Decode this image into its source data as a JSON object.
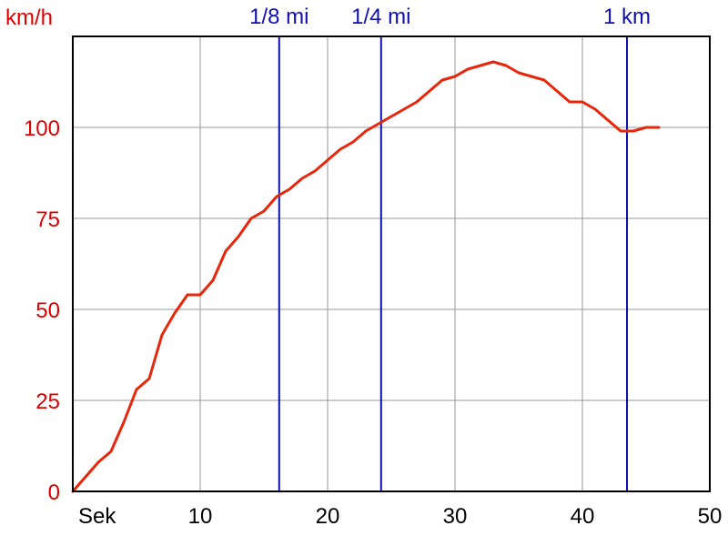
{
  "chart_data": {
    "type": "line",
    "ylabel": "km/h",
    "xlabel": "Sek",
    "xlim": [
      0,
      50
    ],
    "ylim": [
      0,
      125
    ],
    "x_ticks": [
      10,
      20,
      30,
      40,
      50
    ],
    "y_ticks": [
      0,
      25,
      50,
      75,
      100
    ],
    "grid": true,
    "colors": {
      "line": "#e8260c",
      "markers": "#1010b0",
      "grid": "#9a9a9a",
      "y_labels": "#e00000"
    },
    "markers": [
      {
        "label": "1/8 mi",
        "x": 16.2
      },
      {
        "label": "1/4 mi",
        "x": 24.2
      },
      {
        "label": "1 km",
        "x": 43.5
      }
    ],
    "series": [
      {
        "x": [
          0,
          1,
          2,
          3,
          4,
          5,
          6,
          7,
          8,
          9,
          10,
          11,
          12,
          13,
          14,
          15,
          16,
          17,
          18,
          19,
          20,
          21,
          22,
          23,
          24,
          25,
          26,
          27,
          28,
          29,
          30,
          31,
          32,
          33,
          34,
          35,
          36,
          37,
          38,
          39,
          40,
          41,
          42,
          43,
          44,
          45,
          46
        ],
        "y": [
          0,
          4,
          8,
          11,
          19,
          28,
          31,
          43,
          49,
          54,
          54,
          58,
          66,
          70,
          75,
          77,
          81,
          83,
          86,
          88,
          91,
          94,
          96,
          99,
          101,
          103,
          105,
          107,
          110,
          113,
          114,
          116,
          117,
          118,
          117,
          115,
          114,
          113,
          110,
          107,
          107,
          105,
          102,
          99,
          99,
          100,
          100
        ]
      }
    ]
  }
}
